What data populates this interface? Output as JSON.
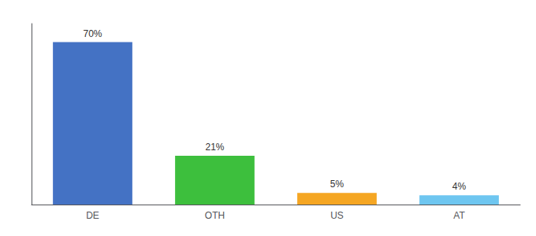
{
  "chart_data": {
    "type": "bar",
    "categories": [
      "DE",
      "OTH",
      "US",
      "AT"
    ],
    "values": [
      70,
      21,
      5,
      4
    ],
    "value_labels": [
      "70%",
      "21%",
      "5%",
      "4%"
    ],
    "colors": [
      "#4472C4",
      "#3DBF3D",
      "#F5A623",
      "#6EC6F0"
    ],
    "ylim": [
      0,
      78
    ],
    "grid": false,
    "data_labels": true,
    "tick_labels": "x"
  }
}
